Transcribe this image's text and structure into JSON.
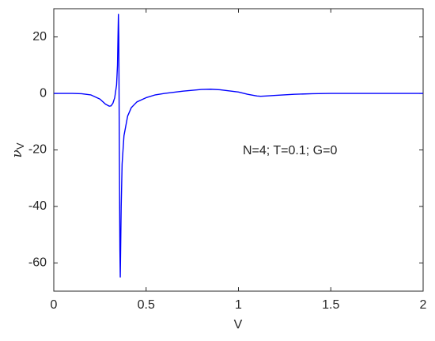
{
  "chart_data": {
    "type": "line",
    "xlabel": "V",
    "ylabel": {
      "text": "ν",
      "subscript": "V"
    },
    "annotation": "N=4; T=0.1; G=0",
    "xlim": [
      0,
      2
    ],
    "ylim": [
      -70,
      30
    ],
    "xticks": [
      0,
      0.5,
      1,
      1.5,
      2
    ],
    "yticks": [
      -60,
      -40,
      -20,
      0,
      20
    ],
    "grid": false,
    "x": [
      0,
      0.1,
      0.15,
      0.2,
      0.25,
      0.28,
      0.3,
      0.31,
      0.32,
      0.33,
      0.34,
      0.345,
      0.35,
      0.352,
      0.355,
      0.358,
      0.36,
      0.365,
      0.37,
      0.38,
      0.4,
      0.42,
      0.45,
      0.5,
      0.55,
      0.6,
      0.7,
      0.8,
      0.85,
      0.9,
      1.0,
      1.05,
      1.1,
      1.12,
      1.15,
      1.2,
      1.3,
      1.4,
      1.5,
      1.7,
      2.0
    ],
    "series": [
      {
        "color": "#0000ff",
        "values": [
          0,
          0,
          -0.1,
          -0.5,
          -2,
          -3.8,
          -4.5,
          -4.4,
          -3.5,
          -1.5,
          3,
          10,
          28,
          20,
          -20,
          -55,
          -65,
          -40,
          -25,
          -15,
          -8,
          -5,
          -3,
          -1.5,
          -0.5,
          0,
          0.8,
          1.4,
          1.5,
          1.3,
          0.5,
          -0.3,
          -0.9,
          -1,
          -0.9,
          -0.7,
          -0.3,
          -0.1,
          0,
          0,
          0
        ]
      }
    ]
  }
}
